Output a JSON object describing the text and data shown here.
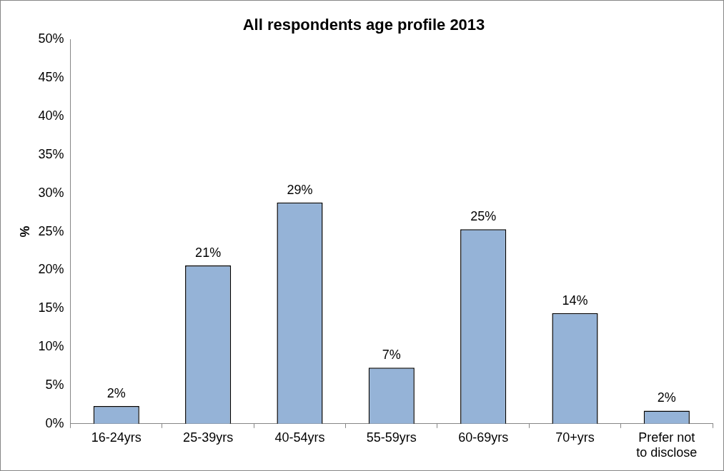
{
  "chart_data": {
    "type": "bar",
    "title": "All respondents age profile 2013",
    "ylabel": "%",
    "categories": [
      "16-24yrs",
      "25-39yrs",
      "40-54yrs",
      "55-59yrs",
      "60-69yrs",
      "70+yrs",
      "Prefer not to disclose"
    ],
    "values": [
      2.3,
      20.6,
      28.8,
      7.3,
      25.3,
      14.4,
      1.7
    ],
    "value_labels": [
      "2%",
      "21%",
      "29%",
      "7%",
      "25%",
      "14%",
      "2%"
    ],
    "color": "#95b3d7",
    "ylim": [
      0,
      50
    ],
    "yticks": [
      {
        "value": 0,
        "label": "0%"
      },
      {
        "value": 5,
        "label": "5%"
      },
      {
        "value": 10,
        "label": "10%"
      },
      {
        "value": 15,
        "label": "15%"
      },
      {
        "value": 20,
        "label": "20%"
      },
      {
        "value": 25,
        "label": "25%"
      },
      {
        "value": 30,
        "label": "30%"
      },
      {
        "value": 35,
        "label": "35%"
      },
      {
        "value": 40,
        "label": "40%"
      },
      {
        "value": 45,
        "label": "45%"
      },
      {
        "value": 50,
        "label": "50%"
      }
    ],
    "grid": false,
    "legend": false
  }
}
